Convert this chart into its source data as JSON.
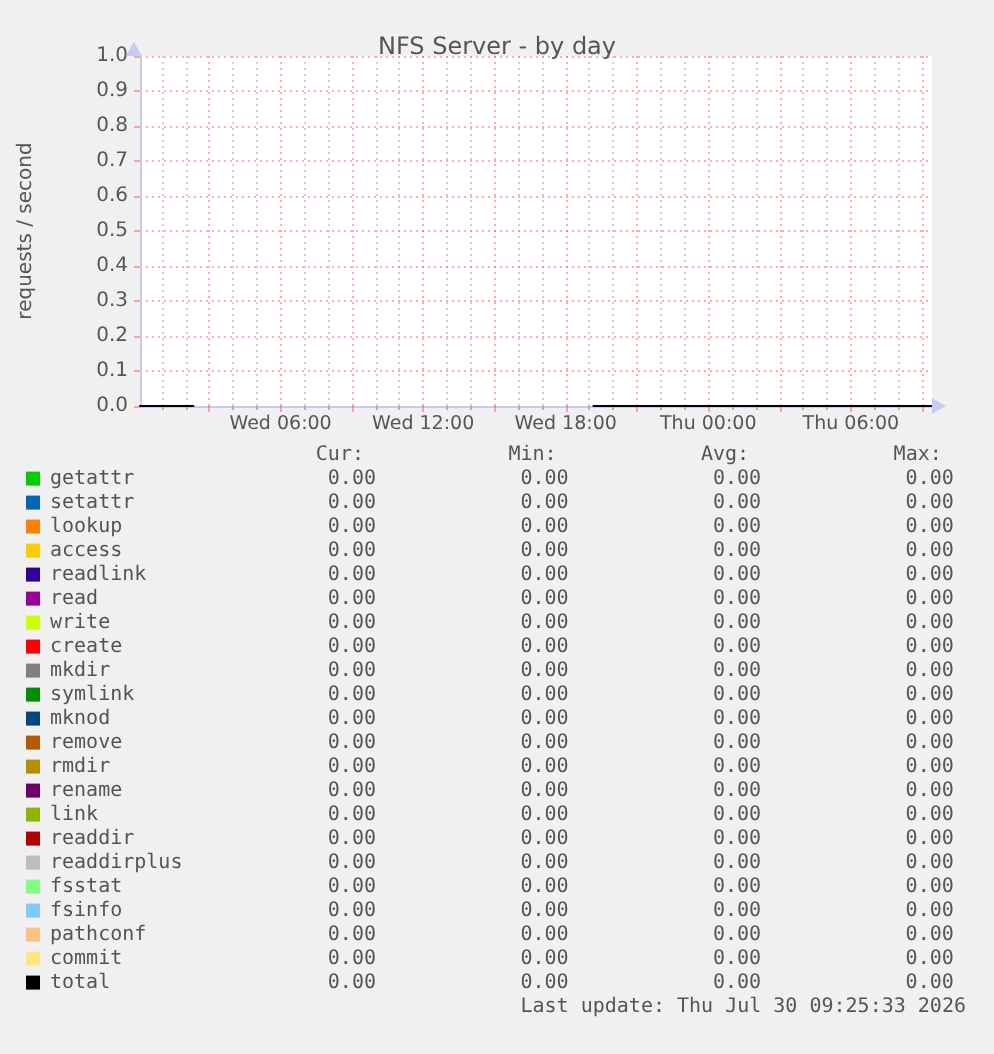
{
  "chart_data": {
    "type": "line",
    "title": "NFS Server - by day",
    "ylabel": "requests / second",
    "x": [
      "2026-07-29T00:05",
      "2026-07-29T02:20",
      "2026-07-29T10:00",
      "2026-07-29T19:10",
      "2026-07-30T09:25"
    ],
    "series": [
      {
        "name": "getattr",
        "color": "#00cc00",
        "values": [
          null,
          null,
          null,
          null,
          null
        ]
      },
      {
        "name": "setattr",
        "color": "#0066b3",
        "values": [
          null,
          null,
          null,
          null,
          null
        ]
      },
      {
        "name": "lookup",
        "color": "#ff8000",
        "values": [
          null,
          null,
          null,
          null,
          null
        ]
      },
      {
        "name": "access",
        "color": "#ffcc00",
        "values": [
          null,
          null,
          null,
          null,
          null
        ]
      },
      {
        "name": "readlink",
        "color": "#330099",
        "values": [
          null,
          null,
          null,
          null,
          null
        ]
      },
      {
        "name": "read",
        "color": "#990099",
        "values": [
          null,
          null,
          null,
          null,
          null
        ]
      },
      {
        "name": "write",
        "color": "#ccff00",
        "values": [
          null,
          null,
          null,
          null,
          null
        ]
      },
      {
        "name": "create",
        "color": "#ff0000",
        "values": [
          null,
          null,
          null,
          null,
          null
        ]
      },
      {
        "name": "mkdir",
        "color": "#808080",
        "values": [
          null,
          null,
          null,
          null,
          null
        ]
      },
      {
        "name": "symlink",
        "color": "#008f00",
        "values": [
          null,
          null,
          null,
          null,
          null
        ]
      },
      {
        "name": "mknod",
        "color": "#00487d",
        "values": [
          null,
          null,
          null,
          null,
          null
        ]
      },
      {
        "name": "remove",
        "color": "#b35a00",
        "values": [
          null,
          null,
          null,
          null,
          null
        ]
      },
      {
        "name": "rmdir",
        "color": "#b38f00",
        "values": [
          null,
          null,
          null,
          null,
          null
        ]
      },
      {
        "name": "rename",
        "color": "#6b006b",
        "values": [
          null,
          null,
          null,
          null,
          null
        ]
      },
      {
        "name": "link",
        "color": "#8fb300",
        "values": [
          null,
          null,
          null,
          null,
          null
        ]
      },
      {
        "name": "readdir",
        "color": "#b30000",
        "values": [
          null,
          null,
          null,
          null,
          null
        ]
      },
      {
        "name": "readdirplus",
        "color": "#bebebe",
        "values": [
          null,
          null,
          null,
          null,
          null
        ]
      },
      {
        "name": "fsstat",
        "color": "#80ff80",
        "values": [
          null,
          null,
          null,
          null,
          null
        ]
      },
      {
        "name": "fsinfo",
        "color": "#80c9ff",
        "values": [
          null,
          null,
          null,
          null,
          null
        ]
      },
      {
        "name": "pathconf",
        "color": "#ffc080",
        "values": [
          null,
          null,
          null,
          null,
          null
        ]
      },
      {
        "name": "commit",
        "color": "#ffe680",
        "values": [
          null,
          null,
          null,
          null,
          null
        ]
      },
      {
        "name": "total",
        "color": "#000000",
        "values": [
          0,
          0,
          null,
          0,
          0
        ]
      }
    ],
    "xlim": [
      "2026-07-29T00:05",
      "2026-07-30T09:25"
    ],
    "xticks": [
      {
        "value": "2026-07-29T03:00",
        "label": null
      },
      {
        "value": "2026-07-29T06:00",
        "label": "Wed 06:00"
      },
      {
        "value": "2026-07-29T09:00",
        "label": null
      },
      {
        "value": "2026-07-29T12:00",
        "label": "Wed 12:00"
      },
      {
        "value": "2026-07-29T15:00",
        "label": null
      },
      {
        "value": "2026-07-29T18:00",
        "label": "Wed 18:00"
      },
      {
        "value": "2026-07-29T21:00",
        "label": null
      },
      {
        "value": "2026-07-30T00:00",
        "label": "Thu 00:00"
      },
      {
        "value": "2026-07-30T03:00",
        "label": null
      },
      {
        "value": "2026-07-30T06:00",
        "label": "Thu 06:00"
      },
      {
        "value": "2026-07-30T09:00",
        "label": null
      }
    ],
    "ylim": [
      0,
      1
    ],
    "yticks": [
      {
        "value": 0,
        "label": "0.0"
      },
      0.1,
      0.2,
      0.3,
      0.4,
      0.5,
      0.6,
      0.7,
      0.8,
      0.9,
      {
        "value": 1,
        "label": "1.0"
      }
    ],
    "grid": true,
    "legend": "bottom left",
    "marker": "none",
    "line_style": "solid",
    "annotations": [
      "Cur:",
      "Min:",
      "Avg:",
      "Max:",
      "0.00",
      "0.00",
      "0.00",
      "0.00",
      "0.00",
      "0.00",
      "0.00",
      "0.00",
      "0.00",
      "0.00",
      "0.00",
      "0.00",
      "0.00",
      "0.00",
      "0.00",
      "0.00",
      "0.00",
      "0.00",
      "0.00",
      "0.00",
      "0.00",
      "0.00",
      "0.00",
      "0.00",
      "0.00",
      "0.00",
      "0.00",
      "0.00",
      "0.00",
      "0.00",
      "0.00",
      "0.00",
      "0.00",
      "0.00",
      "0.00",
      "0.00",
      "0.00",
      "0.00",
      "0.00",
      "0.00",
      "0.00",
      "0.00",
      "0.00",
      "0.00",
      "0.00",
      "0.00",
      "0.00",
      "0.00",
      "0.00",
      "0.00",
      "0.00",
      "0.00",
      "0.00",
      "0.00",
      "0.00",
      "0.00",
      "0.00",
      "0.00",
      "0.00",
      "0.00",
      "0.00",
      "0.00",
      "0.00",
      "0.00",
      "0.00",
      "0.00",
      "0.00",
      "0.00",
      "0.00",
      "0.00",
      "0.00",
      "0.00",
      "0.00",
      "0.00",
      "0.00",
      "0.00",
      "0.00",
      "0.00",
      "0.00",
      "0.00",
      "0.00",
      "0.00",
      "0.00",
      "0.00",
      "0.00",
      "0.00",
      "0.00",
      "0.00",
      "Last update: Thu Jul 30 09:25:33 2026"
    ]
  }
}
